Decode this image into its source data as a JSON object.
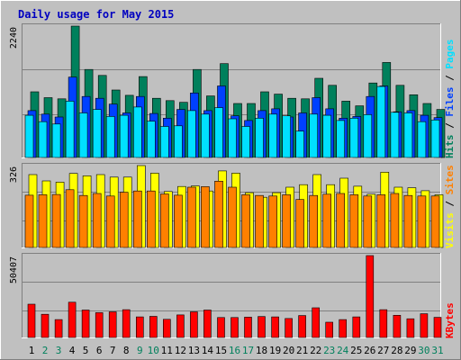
{
  "title": "Daily usage for May 2015",
  "colors": {
    "background": "#c0c0c0",
    "frame_light": "#ffffff",
    "frame_dark": "#808080",
    "title": "#0000c0",
    "grid": "#808080",
    "hits": "#00805c",
    "files": "#0040ff",
    "pages": "#00e0ff",
    "visits": "#ffff00",
    "sites": "#ff8000",
    "kbytes": "#ff0000",
    "day_weekday": "#000000",
    "day_weekend": "#00805c"
  },
  "chart_data": [
    {
      "type": "bar",
      "name": "hits-files-pages",
      "ylabel_parts": [
        "Pages",
        "Files",
        "Hits"
      ],
      "ymax_label": "2240",
      "ylim": [
        0,
        2240
      ],
      "categories": [
        "1",
        "2",
        "3",
        "4",
        "5",
        "6",
        "7",
        "8",
        "9",
        "10",
        "11",
        "12",
        "13",
        "14",
        "15",
        "16",
        "17",
        "18",
        "19",
        "20",
        "21",
        "22",
        "23",
        "24",
        "25",
        "26",
        "27",
        "28",
        "29",
        "30",
        "31"
      ],
      "weekend_days": [
        "2",
        "3",
        "9",
        "10",
        "16",
        "17",
        "23",
        "24",
        "30",
        "31"
      ],
      "series": [
        {
          "name": "Hits",
          "values": [
            1120,
            1020,
            1000,
            2240,
            1500,
            1400,
            1150,
            1060,
            1380,
            1010,
            970,
            940,
            1500,
            1050,
            1600,
            920,
            920,
            1120,
            1080,
            1010,
            1000,
            1350,
            1230,
            960,
            880,
            1270,
            1620,
            1230,
            1070,
            920,
            820
          ]
        },
        {
          "name": "Files",
          "values": [
            800,
            740,
            690,
            1370,
            1040,
            1010,
            910,
            760,
            1040,
            750,
            670,
            820,
            1100,
            800,
            1220,
            710,
            630,
            800,
            830,
            690,
            760,
            1020,
            830,
            670,
            700,
            1040,
            1220,
            780,
            800,
            720,
            680
          ]
        },
        {
          "name": "Pages",
          "values": [
            720,
            610,
            570,
            960,
            760,
            820,
            700,
            720,
            860,
            620,
            530,
            540,
            800,
            740,
            850,
            660,
            530,
            670,
            740,
            710,
            450,
            740,
            720,
            630,
            670,
            730,
            1210,
            770,
            760,
            610,
            640
          ]
        }
      ]
    },
    {
      "type": "bar",
      "name": "visits-sites",
      "ylabel_parts": [
        "Sites",
        "Visits"
      ],
      "ymax_label": "326",
      "ylim": [
        0,
        326
      ],
      "categories": [
        "1",
        "2",
        "3",
        "4",
        "5",
        "6",
        "7",
        "8",
        "9",
        "10",
        "11",
        "12",
        "13",
        "14",
        "15",
        "16",
        "17",
        "18",
        "19",
        "20",
        "21",
        "22",
        "23",
        "24",
        "25",
        "26",
        "27",
        "28",
        "29",
        "30",
        "31"
      ],
      "series": [
        {
          "name": "Visits",
          "values": [
            290,
            265,
            260,
            295,
            285,
            290,
            280,
            280,
            326,
            296,
            223,
            243,
            245,
            225,
            305,
            296,
            218,
            200,
            218,
            240,
            250,
            290,
            250,
            276,
            244,
            212,
            300,
            240,
            238,
            226,
            210
          ]
        },
        {
          "name": "Sites",
          "values": [
            208,
            210,
            211,
            230,
            207,
            215,
            205,
            220,
            225,
            225,
            213,
            208,
            240,
            242,
            264,
            240,
            210,
            207,
            205,
            210,
            191,
            207,
            212,
            215,
            210,
            205,
            210,
            215,
            207,
            205,
            205
          ]
        }
      ]
    },
    {
      "type": "bar",
      "name": "kbytes",
      "ylabel_parts": [
        "KBytes"
      ],
      "ymax_label": "50407",
      "ylim": [
        0,
        50407
      ],
      "categories": [
        "1",
        "2",
        "3",
        "4",
        "5",
        "6",
        "7",
        "8",
        "9",
        "10",
        "11",
        "12",
        "13",
        "14",
        "15",
        "16",
        "17",
        "18",
        "19",
        "20",
        "21",
        "22",
        "23",
        "24",
        "25",
        "26",
        "27",
        "28",
        "29",
        "30",
        "31"
      ],
      "series": [
        {
          "name": "KBytes",
          "values": [
            20500,
            14300,
            11000,
            21700,
            16900,
            15300,
            15800,
            17100,
            12700,
            13000,
            11200,
            13900,
            15800,
            16900,
            12300,
            12300,
            12500,
            12900,
            12700,
            11700,
            13500,
            18300,
            9400,
            11000,
            12700,
            50407,
            17100,
            13700,
            11500,
            14600,
            12400
          ]
        }
      ]
    }
  ]
}
